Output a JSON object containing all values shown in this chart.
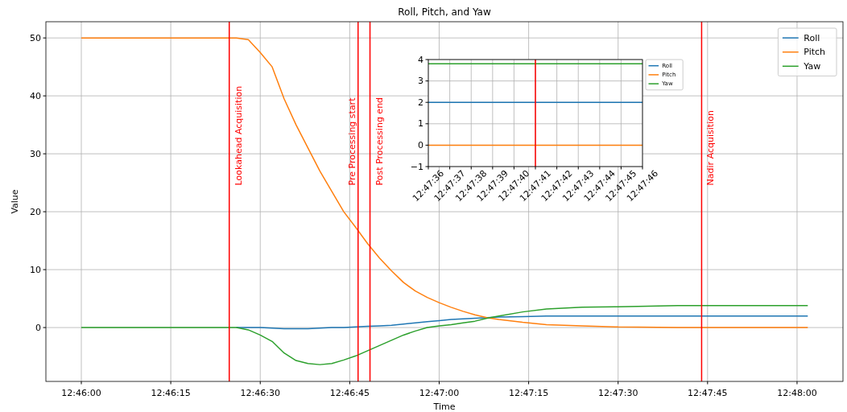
{
  "chart_data": [
    {
      "type": "line",
      "title": "Roll, Pitch, and Yaw",
      "xlabel": "Time",
      "ylabel": "Value",
      "x": [
        12.766667,
        12.769444,
        12.772222,
        12.773333,
        12.773889,
        12.774444,
        12.775,
        12.775556,
        12.776111,
        12.776667,
        12.777222,
        12.777778,
        12.778333,
        12.778889,
        12.779444,
        12.78,
        12.780556,
        12.781111,
        12.781667,
        12.782222,
        12.782778,
        12.783333,
        12.783889,
        12.784444,
        12.785,
        12.785556,
        12.786111,
        12.787222,
        12.788333,
        12.79,
        12.791667,
        12.794444,
        12.797222,
        12.8005
      ],
      "series": [
        {
          "name": "Roll",
          "color": "#1f77b4",
          "values": [
            null,
            null,
            null,
            null,
            0,
            0,
            0,
            -0.1,
            -0.2,
            -0.2,
            -0.2,
            -0.1,
            0,
            0,
            0.1,
            0.2,
            0.3,
            0.4,
            0.6,
            0.8,
            1.0,
            1.2,
            1.4,
            1.5,
            1.6,
            1.7,
            1.8,
            1.9,
            2.0,
            2.0,
            2.0,
            2.0,
            2.0,
            2.0
          ]
        },
        {
          "name": "Pitch",
          "color": "#ff7f0e",
          "values": [
            50,
            50,
            50,
            50,
            50,
            49.7,
            47.5,
            45,
            39.5,
            35,
            31,
            27,
            23.5,
            20,
            17.3,
            14.5,
            12,
            9.8,
            7.8,
            6.3,
            5.2,
            4.3,
            3.5,
            2.8,
            2.2,
            1.7,
            1.4,
            0.9,
            0.5,
            0.3,
            0.1,
            0,
            0,
            0
          ]
        },
        {
          "name": "Yaw",
          "color": "#2ca02c",
          "values": [
            0,
            0,
            0,
            0,
            0,
            -0.4,
            -1.3,
            -2.4,
            -4.4,
            -5.7,
            -6.2,
            -6.4,
            -6.2,
            -5.6,
            -4.9,
            -4.0,
            -3.1,
            -2.2,
            -1.3,
            -0.6,
            0,
            0.3,
            0.5,
            0.8,
            1.1,
            1.6,
            2.0,
            2.7,
            3.2,
            3.5,
            3.6,
            3.8,
            3.8,
            3.8
          ]
        }
      ],
      "xlim": [
        12.765017,
        12.802139
      ],
      "xticks": [
        {
          "value": 12.766667,
          "label": "12:46:00"
        },
        {
          "value": 12.770833,
          "label": "12:46:15"
        },
        {
          "value": 12.775,
          "label": "12:46:30"
        },
        {
          "value": 12.779167,
          "label": "12:46:45"
        },
        {
          "value": 12.783333,
          "label": "12:47:00"
        },
        {
          "value": 12.7875,
          "label": "12:47:15"
        },
        {
          "value": 12.791667,
          "label": "12:47:30"
        },
        {
          "value": 12.795833,
          "label": "12:47:45"
        },
        {
          "value": 12.8,
          "label": "12:48:00"
        }
      ],
      "ylim": [
        -9.3,
        52.8
      ],
      "yticks": [
        0,
        10,
        20,
        30,
        40,
        50
      ],
      "ref_lines": [
        {
          "axis": "x",
          "value": 12.773556,
          "label": "Lookahead Acquisition",
          "color": "#ff0000"
        },
        {
          "axis": "x",
          "value": 12.779556,
          "label": "Pre Processing start",
          "color": "#ff0000"
        },
        {
          "axis": "x",
          "value": 12.780111,
          "label": "Post Processing end",
          "color": "#ff0000"
        },
        {
          "axis": "x",
          "value": 12.795556,
          "label": "Nadir Acquisition",
          "color": "#ff0000"
        }
      ],
      "grid": true,
      "legend": "top right"
    },
    {
      "type": "line",
      "x": [
        12.793333,
        12.796111
      ],
      "series": [
        {
          "name": "Roll",
          "color": "#1f77b4",
          "values": [
            2,
            2
          ]
        },
        {
          "name": "Pitch",
          "color": "#ff7f0e",
          "values": [
            0,
            0
          ]
        },
        {
          "name": "Yaw",
          "color": "#2ca02c",
          "values": [
            3.8,
            3.8
          ]
        }
      ],
      "xlim": [
        12.793333,
        12.796111
      ],
      "xticks": [
        {
          "value": 12.793333,
          "label": "12:47:36"
        },
        {
          "value": 12.793611,
          "label": "12:47:37"
        },
        {
          "value": 12.793889,
          "label": "12:47:38"
        },
        {
          "value": 12.794167,
          "label": "12:47:39"
        },
        {
          "value": 12.794444,
          "label": "12:47:40"
        },
        {
          "value": 12.794722,
          "label": "12:47:41"
        },
        {
          "value": 12.795,
          "label": "12:47:42"
        },
        {
          "value": 12.795278,
          "label": "12:47:43"
        },
        {
          "value": 12.795556,
          "label": "12:47:44"
        },
        {
          "value": 12.795833,
          "label": "12:47:45"
        },
        {
          "value": 12.796111,
          "label": "12:47:46"
        }
      ],
      "ylim": [
        -1,
        4
      ],
      "yticks": [
        {
          "value": -1,
          "label": "−1"
        },
        0,
        1,
        2,
        3,
        4
      ],
      "ref_lines": [
        {
          "axis": "x",
          "value": 12.794722,
          "color": "#ff0000"
        }
      ],
      "grid": true,
      "legend": "top right"
    }
  ]
}
